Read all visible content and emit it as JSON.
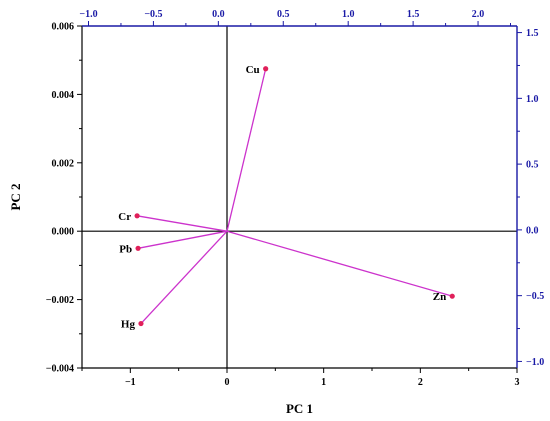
{
  "chart_data": {
    "type": "scatter",
    "subtype": "biplot",
    "xlabel": "PC 1",
    "ylabel": "PC 2",
    "xlim": [
      -1.5,
      3
    ],
    "ylim": [
      -0.004,
      0.006
    ],
    "x_ticks": [
      -1,
      0,
      1,
      2,
      3
    ],
    "x_tick_labels": [
      "−1",
      "0",
      "1",
      "2",
      "3"
    ],
    "y_ticks": [
      -0.004,
      -0.002,
      0.0,
      0.002,
      0.004,
      0.006
    ],
    "y_tick_labels": [
      "−0.004",
      "−0.002",
      "0.000",
      "0.002",
      "0.004",
      "0.006"
    ],
    "top_axis": {
      "lim": [
        -1.05,
        2.3
      ],
      "ticks": [
        -1.0,
        -0.5,
        0.0,
        0.5,
        1.0,
        1.5,
        2.0
      ],
      "tick_labels": [
        "−1.0",
        "−0.5",
        "0.0",
        "0.5",
        "1.0",
        "1.5",
        "2.0"
      ]
    },
    "right_axis": {
      "lim": [
        -1.05,
        1.55
      ],
      "ticks": [
        -1.0,
        -0.5,
        0.0,
        0.5,
        1.0,
        1.5
      ],
      "tick_labels": [
        "−1.0",
        "−0.5",
        "0.0",
        "0.5",
        "1.0",
        "1.5"
      ]
    },
    "points": [
      {
        "label": "Cu",
        "x": 0.4,
        "y": 0.00475
      },
      {
        "label": "Cr",
        "x": -0.93,
        "y": 0.00045
      },
      {
        "label": "Pb",
        "x": -0.92,
        "y": -0.0005
      },
      {
        "label": "Hg",
        "x": -0.89,
        "y": -0.0027
      },
      {
        "label": "Zn",
        "x": 2.33,
        "y": -0.0019
      }
    ],
    "grid": false,
    "colors": {
      "vector": "#cc33cc",
      "point": "#e0205a",
      "secondary_axis": "#1a1aa6"
    }
  }
}
